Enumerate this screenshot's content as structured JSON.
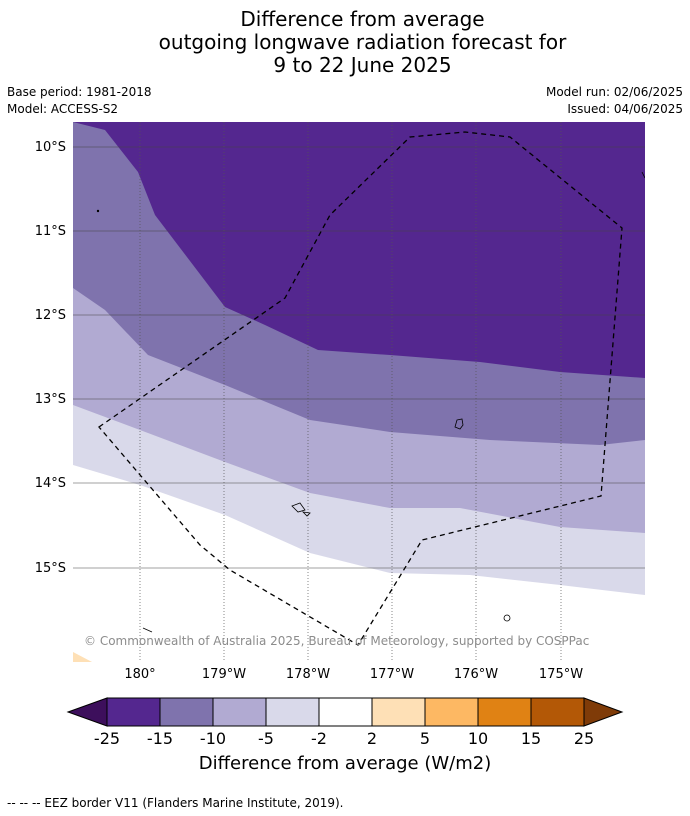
{
  "title": {
    "line1": "Difference from average",
    "line2": "outgoing longwave radiation forecast for",
    "line3": "9 to 22 June 2025"
  },
  "meta": {
    "base_period": "Base period: 1981-2018",
    "model": "Model: ACCESS-S2",
    "model_run": "Model run: 02/06/2025",
    "issued": "Issued: 04/06/2025"
  },
  "map": {
    "lat_labels": [
      "10°S",
      "11°S",
      "12°S",
      "13°S",
      "14°S",
      "15°S"
    ],
    "lon_labels": [
      "180°",
      "179°W",
      "178°W",
      "177°W",
      "176°W",
      "175°W"
    ],
    "copyright": "© Commonwealth of Australia 2025, Bureau of Meteorology, supported by COSPPac"
  },
  "colorbar": {
    "ticks": [
      "-25",
      "-15",
      "-10",
      "-5",
      "-2",
      "2",
      "5",
      "10",
      "15",
      "25"
    ],
    "colors": [
      "#3d0f5c",
      "#54278f",
      "#7f73ad",
      "#b1aad2",
      "#d9d9ea",
      "#ffffff",
      "#fee0b6",
      "#fdb863",
      "#e08214",
      "#b35806",
      "#7f3b08"
    ],
    "label": "Difference from average (W/m2)"
  },
  "footnote": "--  --  -- EEZ border V11 (Flanders Marine Institute, 2019)."
}
